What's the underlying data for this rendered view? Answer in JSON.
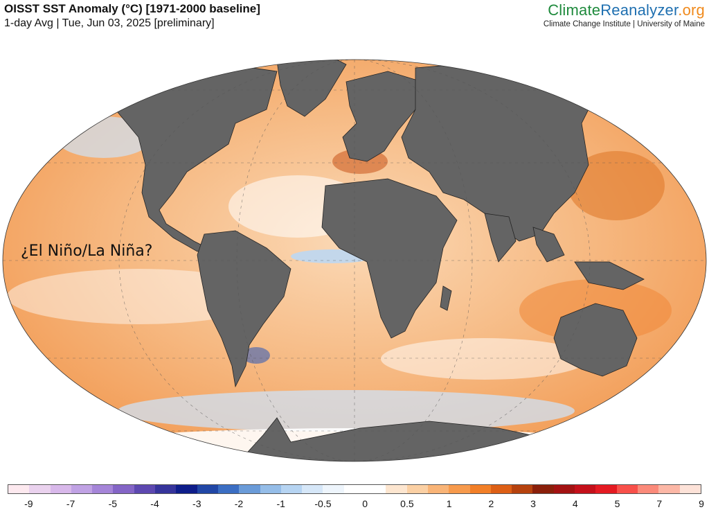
{
  "header": {
    "title": "OISST SST Anomaly (°C) [1971-2000 baseline]",
    "subtitle": "1-day Avg | Tue, Jun 03, 2025 [preliminary]"
  },
  "brand": {
    "name_part1": "Climate",
    "name_part2": "Reanalyzer",
    "name_part3": ".org",
    "subtitle": "Climate Change Institute | University of Maine"
  },
  "map": {
    "annotation": "¿El Niño/La Niña?",
    "ocean_color": "#f6c79c",
    "land_color": "#646464"
  },
  "colorbar": {
    "colors": [
      "#fde9ef",
      "#ead2ee",
      "#d8b8ea",
      "#c0a2e4",
      "#a585d8",
      "#8465c6",
      "#5d48b0",
      "#36349b",
      "#0e1d8a",
      "#2147a6",
      "#3b6ec3",
      "#6a9bd8",
      "#95bde8",
      "#b6d4f2",
      "#d6e7f8",
      "#eef5fc",
      "#ffffff",
      "#ffffff",
      "#fde6d0",
      "#fbd0a4",
      "#f9b477",
      "#f79a4c",
      "#f27f27",
      "#dd5f15",
      "#b6420e",
      "#8a1f0a",
      "#a31212",
      "#c4101a",
      "#e41a22",
      "#f8504a",
      "#fb8a7a",
      "#fcb7a6",
      "#fde2d8"
    ],
    "tick_labels": [
      "-9",
      "-7",
      "-5",
      "-4",
      "-3",
      "-2",
      "-1",
      "-0.5",
      "0",
      "0.5",
      "1",
      "2",
      "3",
      "4",
      "5",
      "7",
      "9"
    ]
  }
}
